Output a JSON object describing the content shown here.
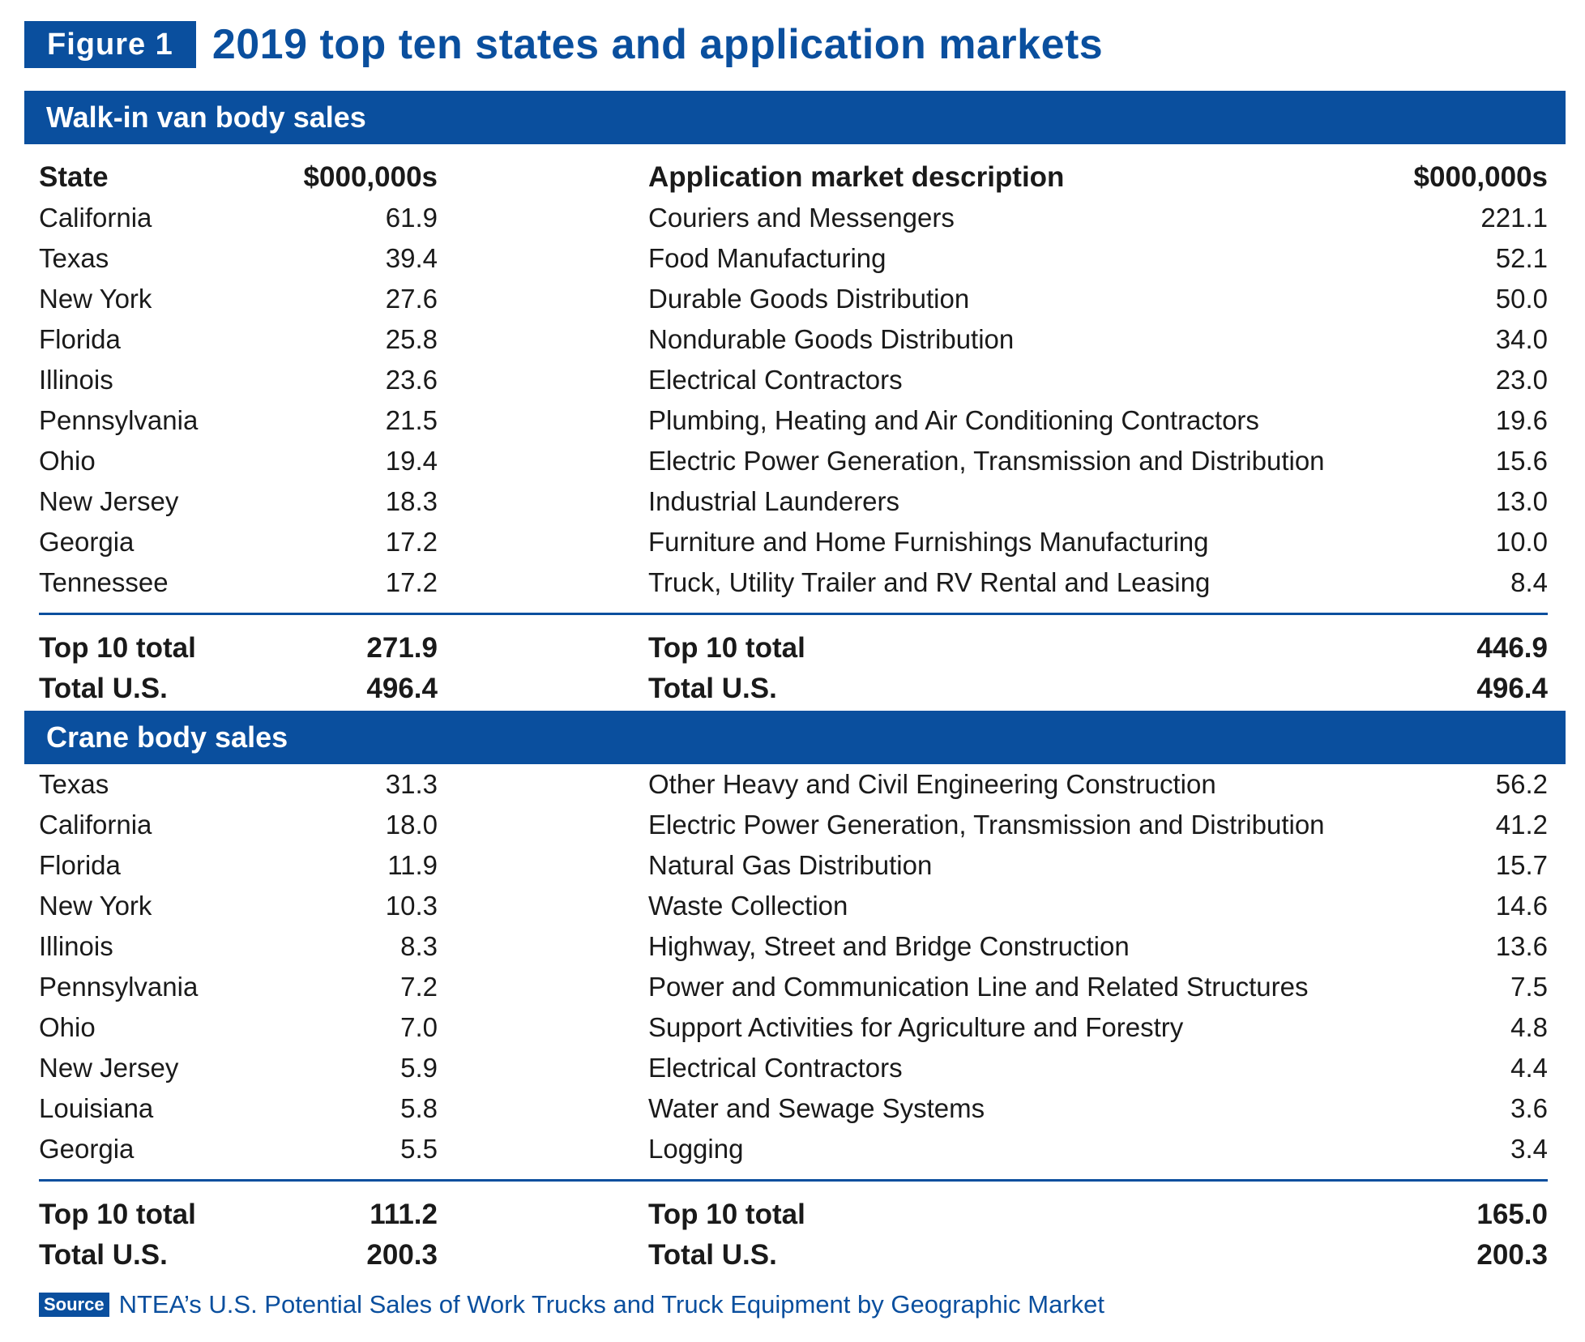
{
  "figure": {
    "label": "Figure 1",
    "title": "2019 top ten states and application markets"
  },
  "chart_data": {
    "type": "table",
    "columns": {
      "state": "State",
      "state_value": "$000,000s",
      "application": "Application market description",
      "application_value": "$000,000s"
    },
    "sections": [
      {
        "title": "Walk-in van body sales",
        "show_header": true,
        "states": [
          {
            "name": "California",
            "value": "61.9"
          },
          {
            "name": "Texas",
            "value": "39.4"
          },
          {
            "name": "New York",
            "value": "27.6"
          },
          {
            "name": "Florida",
            "value": "25.8"
          },
          {
            "name": "Illinois",
            "value": "23.6"
          },
          {
            "name": "Pennsylvania",
            "value": "21.5"
          },
          {
            "name": "Ohio",
            "value": "19.4"
          },
          {
            "name": "New Jersey",
            "value": "18.3"
          },
          {
            "name": "Georgia",
            "value": "17.2"
          },
          {
            "name": "Tennessee",
            "value": "17.2"
          }
        ],
        "applications": [
          {
            "name": "Couriers and Messengers",
            "value": "221.1"
          },
          {
            "name": "Food Manufacturing",
            "value": "52.1"
          },
          {
            "name": "Durable Goods Distribution",
            "value": "50.0"
          },
          {
            "name": "Nondurable Goods Distribution",
            "value": "34.0"
          },
          {
            "name": "Electrical Contractors",
            "value": "23.0"
          },
          {
            "name": "Plumbing, Heating and Air Conditioning Contractors",
            "value": "19.6"
          },
          {
            "name": "Electric Power Generation, Transmission and Distribution",
            "value": "15.6"
          },
          {
            "name": "Industrial Launderers",
            "value": "13.0"
          },
          {
            "name": "Furniture and Home Furnishings Manufacturing",
            "value": "10.0"
          },
          {
            "name": "Truck, Utility Trailer and RV Rental and Leasing",
            "value": "8.4"
          }
        ],
        "totals": [
          {
            "label": "Top 10 total",
            "state_value": "271.9",
            "app_label": "Top 10 total",
            "app_value": "446.9"
          },
          {
            "label": "Total U.S.",
            "state_value": "496.4",
            "app_label": "Total U.S.",
            "app_value": "496.4"
          }
        ]
      },
      {
        "title": "Crane body sales",
        "show_header": false,
        "states": [
          {
            "name": "Texas",
            "value": "31.3"
          },
          {
            "name": "California",
            "value": "18.0"
          },
          {
            "name": "Florida",
            "value": "11.9"
          },
          {
            "name": "New York",
            "value": "10.3"
          },
          {
            "name": "Illinois",
            "value": "8.3"
          },
          {
            "name": "Pennsylvania",
            "value": "7.2"
          },
          {
            "name": "Ohio",
            "value": "7.0"
          },
          {
            "name": "New Jersey",
            "value": "5.9"
          },
          {
            "name": "Louisiana",
            "value": "5.8"
          },
          {
            "name": "Georgia",
            "value": "5.5"
          }
        ],
        "applications": [
          {
            "name": "Other Heavy and Civil Engineering Construction",
            "value": "56.2"
          },
          {
            "name": "Electric Power Generation, Transmission and Distribution",
            "value": "41.2"
          },
          {
            "name": "Natural Gas Distribution",
            "value": "15.7"
          },
          {
            "name": "Waste Collection",
            "value": "14.6"
          },
          {
            "name": "Highway, Street and Bridge Construction",
            "value": "13.6"
          },
          {
            "name": "Power and Communication Line and Related Structures",
            "value": "7.5"
          },
          {
            "name": "Support Activities for Agriculture and Forestry",
            "value": "4.8"
          },
          {
            "name": "Electrical Contractors",
            "value": "4.4"
          },
          {
            "name": "Water and Sewage Systems",
            "value": "3.6"
          },
          {
            "name": "Logging",
            "value": "3.4"
          }
        ],
        "totals": [
          {
            "label": "Top 10 total",
            "state_value": "111.2",
            "app_label": "Top 10 total",
            "app_value": "165.0"
          },
          {
            "label": "Total U.S.",
            "state_value": "200.3",
            "app_label": "Total U.S.",
            "app_value": "200.3"
          }
        ]
      }
    ]
  },
  "source": {
    "label": "Source",
    "text": "NTEA’s U.S. Potential Sales of Work Trucks and Truck Equipment by Geographic Market"
  },
  "colors": {
    "brand_blue": "#0a4f9e",
    "text": "#1a1a1a"
  }
}
